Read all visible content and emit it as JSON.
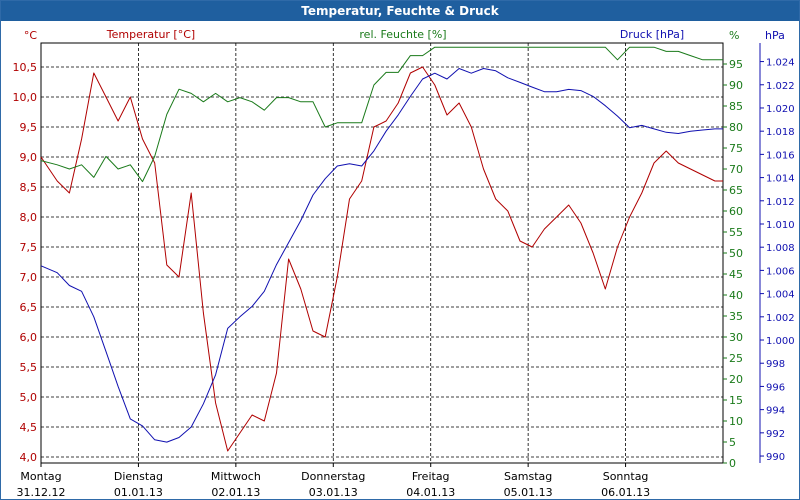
{
  "chart_data": {
    "type": "line",
    "title": "Temperatur, Feuchte & Druck",
    "series": [
      {
        "name": "Temperatur [°C]",
        "axis": "left",
        "unit": "°C",
        "color": "#b00000",
        "x": [
          0,
          4,
          7,
          10,
          13,
          16,
          19,
          22,
          25,
          28,
          31,
          34,
          37,
          40,
          43,
          46,
          49,
          52,
          55,
          58,
          61,
          64,
          67,
          70,
          73,
          76,
          79,
          82,
          85,
          88,
          91,
          94,
          97,
          100,
          103,
          106,
          109,
          112,
          115,
          118,
          121,
          124,
          127,
          130,
          133,
          136,
          139,
          142,
          145,
          148,
          151,
          154,
          157,
          160,
          163,
          166,
          168
        ],
        "values": [
          9.0,
          8.6,
          8.4,
          9.3,
          10.4,
          10.0,
          9.6,
          10.0,
          9.3,
          8.9,
          7.2,
          7.0,
          8.4,
          6.4,
          4.9,
          4.1,
          4.4,
          4.7,
          4.6,
          5.4,
          7.3,
          6.8,
          6.1,
          6.0,
          7.0,
          8.3,
          8.6,
          9.5,
          9.6,
          9.9,
          10.4,
          10.5,
          10.2,
          9.7,
          9.9,
          9.5,
          8.8,
          8.3,
          8.1,
          7.6,
          7.5,
          7.8,
          8.0,
          8.2,
          7.9,
          7.4,
          6.8,
          7.5,
          8.0,
          8.4,
          8.9,
          9.1,
          8.9,
          8.8,
          8.7,
          8.6,
          8.6
        ]
      },
      {
        "name": "rel. Feuchte [%]",
        "axis": "middle",
        "unit": "%",
        "color": "#1a7a1a",
        "x": [
          0,
          4,
          7,
          10,
          13,
          16,
          19,
          22,
          25,
          28,
          31,
          34,
          37,
          40,
          43,
          46,
          49,
          52,
          55,
          58,
          61,
          64,
          67,
          70,
          73,
          76,
          79,
          82,
          85,
          88,
          91,
          94,
          97,
          100,
          103,
          106,
          109,
          112,
          115,
          118,
          121,
          124,
          127,
          130,
          133,
          136,
          139,
          142,
          145,
          148,
          151,
          154,
          157,
          160,
          163,
          166,
          168
        ],
        "values": [
          72,
          71,
          70,
          71,
          68,
          73,
          70,
          71,
          67,
          73,
          83,
          89,
          88,
          86,
          88,
          86,
          87,
          86,
          84,
          87,
          87,
          86,
          86,
          80,
          81,
          81,
          81,
          90,
          93,
          93,
          97,
          97,
          99,
          99,
          99,
          99,
          99,
          99,
          99,
          99,
          99,
          99,
          99,
          99,
          99,
          99,
          99,
          96,
          99,
          99,
          99,
          98,
          98,
          97,
          96,
          96,
          96
        ]
      },
      {
        "name": "Druck [hPa]",
        "axis": "right",
        "unit": "hPa",
        "color": "#1010b0",
        "x": [
          0,
          4,
          7,
          10,
          13,
          16,
          19,
          22,
          25,
          28,
          31,
          34,
          37,
          40,
          43,
          46,
          49,
          52,
          55,
          58,
          61,
          64,
          67,
          70,
          73,
          76,
          79,
          82,
          85,
          88,
          91,
          94,
          97,
          100,
          103,
          106,
          109,
          112,
          115,
          118,
          121,
          124,
          127,
          130,
          133,
          136,
          139,
          142,
          145,
          148,
          151,
          154,
          157,
          160,
          163,
          166,
          168
        ],
        "values": [
          1006.4,
          1005.8,
          1004.7,
          1004.2,
          1002.0,
          999.0,
          996.0,
          993.2,
          992.6,
          991.4,
          991.2,
          991.6,
          992.5,
          994.5,
          997.0,
          1001.0,
          1002.0,
          1002.9,
          1004.2,
          1006.5,
          1008.4,
          1010.3,
          1012.5,
          1013.9,
          1015.0,
          1015.2,
          1015.0,
          1016.3,
          1018.0,
          1019.4,
          1021.0,
          1022.5,
          1023.0,
          1022.5,
          1023.4,
          1023.0,
          1023.4,
          1023.2,
          1022.6,
          1022.2,
          1021.8,
          1021.4,
          1021.4,
          1021.6,
          1021.5,
          1021.0,
          1020.2,
          1019.3,
          1018.3,
          1018.5,
          1018.2,
          1017.9,
          1017.8,
          1018.0,
          1018.1,
          1018.2,
          1018.2
        ]
      }
    ],
    "axes": {
      "left": {
        "unit_label": "°C",
        "min": 3.9,
        "max": 10.9,
        "ticks": [
          "4,0",
          "4,5",
          "5,0",
          "5,5",
          "6,0",
          "6,5",
          "7,0",
          "7,5",
          "8,0",
          "8,5",
          "9,0",
          "9,5",
          "10,0",
          "10,5"
        ]
      },
      "middle": {
        "unit_label": "%",
        "min": 0,
        "max": 100,
        "ticks": [
          "0",
          "5",
          "10",
          "15",
          "20",
          "25",
          "30",
          "35",
          "40",
          "45",
          "50",
          "55",
          "60",
          "65",
          "70",
          "75",
          "80",
          "85",
          "90",
          "95"
        ]
      },
      "right": {
        "unit_label": "hPa",
        "min": 989.4,
        "max": 1025.6,
        "ticks": [
          "990",
          "992",
          "994",
          "996",
          "998",
          "1.000",
          "1.002",
          "1.004",
          "1.006",
          "1.008",
          "1.010",
          "1.012",
          "1.014",
          "1.016",
          "1.018",
          "1.020",
          "1.022",
          "1.024"
        ]
      }
    },
    "x_axis": {
      "range_hours": [
        0,
        168
      ],
      "day_labels": [
        {
          "day": "Montag",
          "date": "31.12.12"
        },
        {
          "day": "Dienstag",
          "date": "01.01.13"
        },
        {
          "day": "Mittwoch",
          "date": "02.01.13"
        },
        {
          "day": "Donnerstag",
          "date": "03.01.13"
        },
        {
          "day": "Freitag",
          "date": "04.01.13"
        },
        {
          "day": "Samstag",
          "date": "05.01.13"
        },
        {
          "day": "Sonntag",
          "date": "06.01.13"
        }
      ]
    },
    "grid": true,
    "gridlines": "dashed"
  }
}
